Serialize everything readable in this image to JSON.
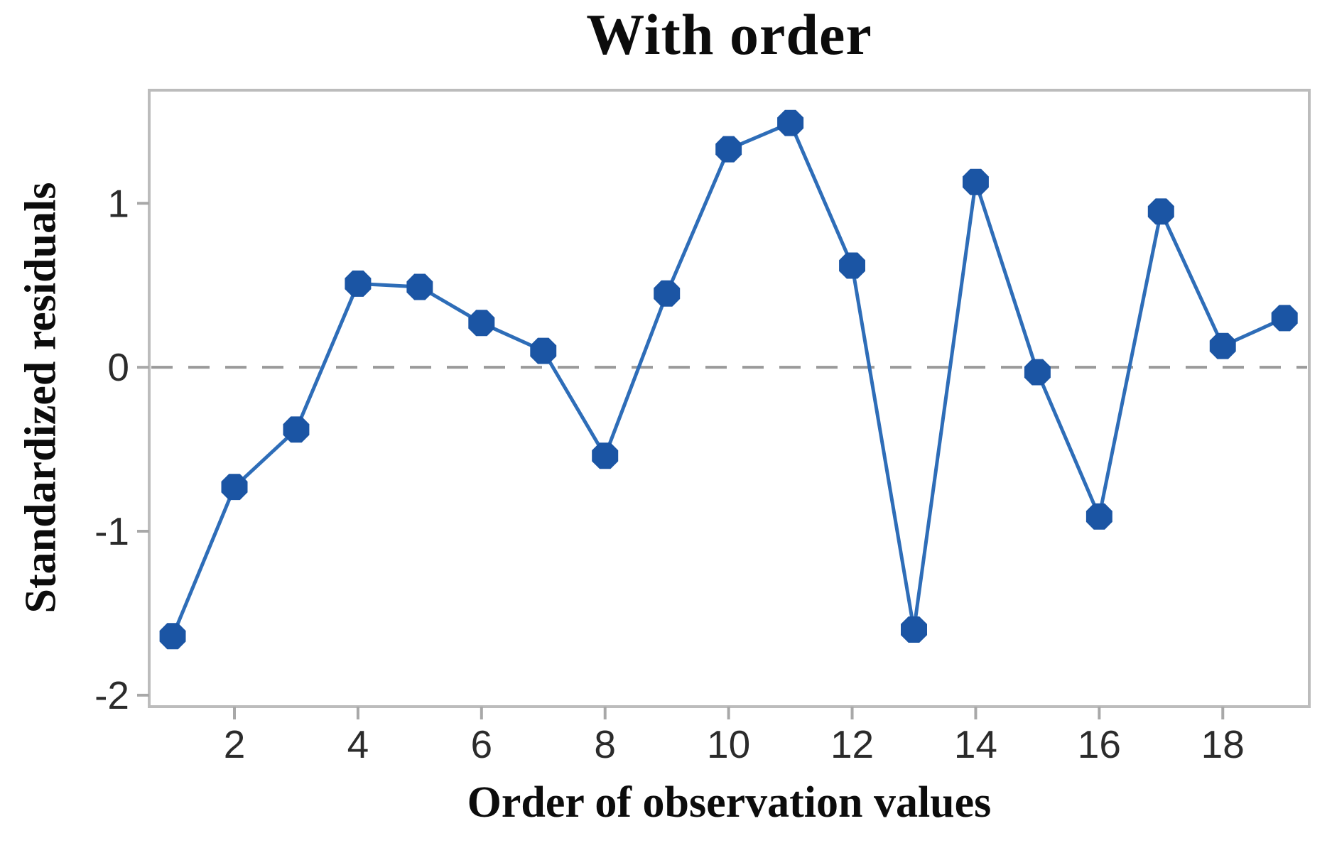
{
  "figure": {
    "title": "With order",
    "xlabel": "Order of observation values",
    "ylabel": "Standardized residuals"
  },
  "chart_data": {
    "type": "line",
    "title": "With order",
    "xlabel": "Order of observation values",
    "ylabel": "Standardized residuals",
    "x": [
      1,
      2,
      3,
      4,
      5,
      6,
      7,
      8,
      9,
      10,
      11,
      12,
      13,
      14,
      15,
      16,
      17,
      18,
      19
    ],
    "values": [
      -1.64,
      -0.73,
      -0.38,
      0.51,
      0.49,
      0.27,
      0.1,
      -0.54,
      0.45,
      1.33,
      1.49,
      0.62,
      -1.6,
      1.13,
      -0.03,
      -0.91,
      0.95,
      0.13,
      0.3
    ],
    "series_name": "Standardized residuals",
    "xticks": [
      2,
      4,
      6,
      8,
      10,
      12,
      14,
      16,
      18
    ],
    "yticks": [
      1,
      0,
      -1,
      -2
    ],
    "xlim": [
      0.62,
      19.4
    ],
    "ylim": [
      -2.07,
      1.69
    ],
    "grid": false,
    "reference_line": {
      "y": 0,
      "style": "dashed",
      "color": "#9a9a9a"
    },
    "marker_shape": "octagon",
    "colors": {
      "line": "#2e6db8",
      "marker": "#1b55a4",
      "border": "#bcbcbc",
      "tick": "#a8a8a8",
      "tick_label": "#2b2b2b",
      "text": "#0c0c0c",
      "background": "#ffffff"
    }
  }
}
